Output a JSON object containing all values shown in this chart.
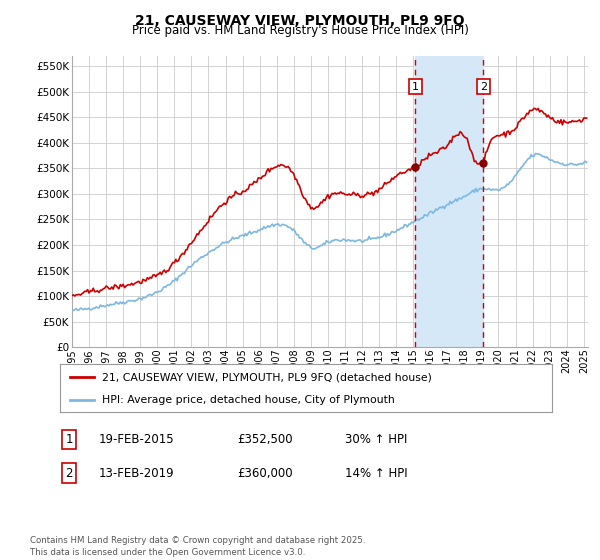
{
  "title": "21, CAUSEWAY VIEW, PLYMOUTH, PL9 9FQ",
  "subtitle": "Price paid vs. HM Land Registry's House Price Index (HPI)",
  "ylim": [
    0,
    570000
  ],
  "yticks": [
    0,
    50000,
    100000,
    150000,
    200000,
    250000,
    300000,
    350000,
    400000,
    450000,
    500000,
    550000
  ],
  "ytick_labels": [
    "£0",
    "£50K",
    "£100K",
    "£150K",
    "£200K",
    "£250K",
    "£300K",
    "£350K",
    "£400K",
    "£450K",
    "£500K",
    "£550K"
  ],
  "background_color": "#ffffff",
  "grid_color": "#cccccc",
  "hpi_line_color": "#7eb8e0",
  "price_line_color": "#cc0000",
  "sale1_price": 352500,
  "sale1_label": "19-FEB-2015",
  "sale1_hpi_pct": "30% ↑ HPI",
  "sale2_price": 360000,
  "sale2_label": "13-FEB-2019",
  "sale2_hpi_pct": "14% ↑ HPI",
  "legend_line1": "21, CAUSEWAY VIEW, PLYMOUTH, PL9 9FQ (detached house)",
  "legend_line2": "HPI: Average price, detached house, City of Plymouth",
  "footnote": "Contains HM Land Registry data © Crown copyright and database right 2025.\nThis data is licensed under the Open Government Licence v3.0.",
  "shade_color": "#d4e8f7",
  "vline_color": "#cc0000",
  "marker_color": "#880000",
  "box_color": "#cc0000",
  "hpi_key_years": [
    1995.0,
    1996.0,
    1997.0,
    1998.0,
    1999.0,
    2000.0,
    2001.0,
    2002.0,
    2003.0,
    2004.0,
    2005.0,
    2006.0,
    2007.0,
    2008.0,
    2009.0,
    2010.0,
    2011.0,
    2012.0,
    2013.0,
    2014.0,
    2015.0,
    2016.0,
    2017.0,
    2018.0,
    2019.0,
    2020.0,
    2021.0,
    2022.0,
    2023.0,
    2024.0,
    2025.25
  ],
  "hpi_key_vals": [
    72000,
    76000,
    82000,
    88000,
    95000,
    108000,
    130000,
    160000,
    185000,
    205000,
    218000,
    230000,
    240000,
    228000,
    195000,
    205000,
    210000,
    208000,
    215000,
    228000,
    245000,
    262000,
    280000,
    295000,
    310000,
    308000,
    335000,
    375000,
    368000,
    358000,
    363000
  ],
  "red_key_years": [
    1995.0,
    1996.0,
    1997.0,
    1998.0,
    1999.0,
    2000.0,
    2001.0,
    2002.0,
    2003.0,
    2004.0,
    2005.0,
    2006.0,
    2007.0,
    2008.0,
    2009.0,
    2010.0,
    2011.0,
    2012.0,
    2013.0,
    2014.0,
    2015.08,
    2016.0,
    2017.0,
    2018.0,
    2019.08,
    2019.5,
    2020.0,
    2021.0,
    2022.0,
    2023.0,
    2024.0,
    2025.25
  ],
  "red_key_vals": [
    100000,
    108000,
    115000,
    120000,
    128000,
    140000,
    165000,
    205000,
    248000,
    285000,
    305000,
    330000,
    355000,
    338000,
    275000,
    295000,
    300000,
    298000,
    308000,
    335000,
    352500,
    375000,
    395000,
    415000,
    360000,
    400000,
    415000,
    430000,
    465000,
    450000,
    440000,
    450000
  ]
}
